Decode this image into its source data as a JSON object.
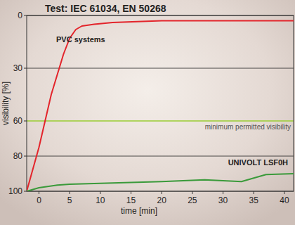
{
  "chart_data": {
    "type": "line",
    "title": "Test: IEC 61034, EN 50268",
    "x_label": "time [min]",
    "y_label": "visibility [%]",
    "xlim": [
      -2,
      41.5
    ],
    "xticks": [
      0,
      5,
      10,
      15,
      20,
      25,
      30,
      35,
      40
    ],
    "ylim": [
      0,
      100
    ],
    "yticks": [
      0,
      30,
      60,
      80,
      100
    ],
    "grid": true,
    "series": [
      {
        "name": "PVC systems",
        "color": "#e3242b",
        "x": [
          -2,
          0,
          2,
          4,
          5,
          6,
          7,
          9,
          12,
          20,
          30,
          41.5
        ],
        "values": [
          100,
          75,
          45,
          22,
          13,
          8,
          6,
          5,
          4,
          3,
          3,
          3
        ]
      },
      {
        "name": "UNIVOLT LSF0H",
        "color": "#3a9a3a",
        "x": [
          -2,
          0,
          3,
          5,
          10,
          20,
          27,
          30,
          33,
          35,
          37,
          41.5
        ],
        "values": [
          100,
          98,
          96.5,
          96,
          95.5,
          94.5,
          93.5,
          94,
          94.5,
          92.5,
          90.5,
          90
        ]
      }
    ],
    "threshold": {
      "value": 60,
      "label": "minimum permitted visibility",
      "color": "#9acd32"
    }
  }
}
